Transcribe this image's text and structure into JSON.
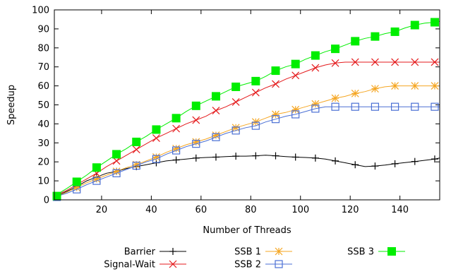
{
  "chart_data": {
    "type": "line",
    "xlabel": "Number of Threads",
    "ylabel": "Speedup",
    "xlim": [
      1,
      156
    ],
    "ylim": [
      0,
      100
    ],
    "xticks": [
      20,
      40,
      60,
      80,
      100,
      120,
      140
    ],
    "yticks": [
      0,
      10,
      20,
      30,
      40,
      50,
      60,
      70,
      80,
      90,
      100
    ],
    "grid": false,
    "legend": "bottom",
    "series": [
      {
        "name": "Barrier",
        "color": "#000000",
        "marker": "plus",
        "line_x": [
          1,
          6,
          10,
          14,
          18,
          22,
          26,
          30,
          34,
          38,
          42,
          46,
          50,
          54,
          58,
          62,
          66,
          70,
          74,
          78,
          82,
          86,
          90,
          94,
          98,
          102,
          106,
          110,
          114,
          118,
          122,
          126,
          130,
          134,
          138,
          142,
          146,
          150,
          154,
          156
        ],
        "line_y": [
          1.5,
          4.5,
          7,
          10,
          12,
          14,
          15,
          16.5,
          17.5,
          18.5,
          19.5,
          20.5,
          21,
          21.5,
          22,
          22.3,
          22.5,
          22.8,
          23,
          23,
          23.2,
          23.5,
          23.2,
          22.8,
          22.5,
          22.3,
          22,
          21.5,
          20.5,
          19.5,
          18.5,
          17.5,
          17.8,
          18.3,
          19,
          19.6,
          20.2,
          20.8,
          21.5,
          22
        ],
        "marker_x": [
          2,
          10,
          18,
          26,
          34,
          42,
          50,
          58,
          66,
          74,
          82,
          90,
          98,
          106,
          114,
          122,
          130,
          138,
          146,
          154
        ],
        "marker_y": [
          1.5,
          7,
          12,
          15,
          17.5,
          19.5,
          21,
          22,
          22.5,
          23,
          23.2,
          23.2,
          22.5,
          22,
          20.5,
          18.5,
          17.8,
          19,
          20.2,
          21.5
        ]
      },
      {
        "name": "Signal-Wait",
        "color": "#e41a1c",
        "marker": "cross",
        "line_x": [
          1,
          6,
          10,
          14,
          18,
          22,
          26,
          30,
          34,
          38,
          42,
          46,
          50,
          54,
          58,
          62,
          66,
          70,
          74,
          78,
          82,
          86,
          90,
          94,
          98,
          102,
          106,
          110,
          114,
          118,
          122,
          126,
          130,
          134,
          138,
          142,
          146,
          150,
          154,
          156
        ],
        "line_y": [
          2,
          5,
          8,
          11,
          14,
          17.5,
          20.5,
          23.5,
          26.5,
          29.5,
          32.5,
          35,
          37.5,
          40,
          42,
          44,
          47,
          49,
          51.5,
          54,
          56.5,
          59,
          61,
          63.5,
          65.5,
          67.5,
          69.5,
          71,
          72,
          72.5,
          72.5,
          72.5,
          72.5,
          72.5,
          72.5,
          72.5,
          72.5,
          72.5,
          72.5,
          72.5
        ],
        "marker_x": [
          2,
          10,
          18,
          26,
          34,
          42,
          50,
          58,
          66,
          74,
          82,
          90,
          98,
          106,
          114,
          122,
          130,
          138,
          146,
          154
        ],
        "marker_y": [
          2,
          8,
          14,
          20.5,
          26.5,
          32.5,
          37.5,
          42,
          47,
          51.5,
          56.5,
          61,
          65.5,
          69.5,
          72,
          72.5,
          72.5,
          72.5,
          72.5,
          72.5
        ]
      },
      {
        "name": "SSB 1",
        "color": "#f5a623",
        "marker": "star",
        "line_x": [
          1,
          6,
          10,
          14,
          18,
          22,
          26,
          30,
          34,
          38,
          42,
          46,
          50,
          54,
          58,
          62,
          66,
          70,
          74,
          78,
          82,
          86,
          90,
          94,
          98,
          102,
          106,
          110,
          114,
          118,
          122,
          126,
          130,
          134,
          138,
          142,
          146,
          150,
          154,
          156
        ],
        "line_y": [
          1.5,
          4,
          6.5,
          9,
          11,
          13,
          15,
          17,
          18.5,
          20.5,
          22.5,
          25,
          27,
          29,
          30.5,
          32,
          34,
          36,
          38,
          39.5,
          41,
          43,
          45,
          46,
          47.5,
          49,
          50.5,
          52,
          53.5,
          54.5,
          56,
          57,
          58.5,
          59.5,
          60,
          60,
          60,
          60,
          60,
          60
        ],
        "marker_x": [
          2,
          10,
          18,
          26,
          34,
          42,
          50,
          58,
          66,
          74,
          82,
          90,
          98,
          106,
          114,
          122,
          130,
          138,
          146,
          154
        ],
        "marker_y": [
          1.5,
          6.5,
          11,
          15,
          18.5,
          22.5,
          27,
          30.5,
          34,
          38,
          41,
          45,
          47.5,
          50.5,
          53.5,
          56,
          58.5,
          60,
          60,
          60
        ]
      },
      {
        "name": "SSB 2",
        "color": "#4a6fd4",
        "marker": "square-open",
        "line_x": [
          1,
          6,
          10,
          14,
          18,
          22,
          26,
          30,
          34,
          38,
          42,
          46,
          50,
          54,
          58,
          62,
          66,
          70,
          74,
          78,
          82,
          86,
          90,
          94,
          98,
          102,
          106,
          110,
          114,
          118,
          122,
          126,
          130,
          134,
          138,
          142,
          146,
          150,
          154,
          156
        ],
        "line_y": [
          1.5,
          3.5,
          5.5,
          8,
          10,
          12,
          14,
          16,
          18,
          20,
          21.5,
          24,
          26,
          28,
          29.5,
          31,
          33,
          35,
          36.5,
          38,
          39,
          41,
          42.5,
          44,
          45,
          46.5,
          48,
          49,
          49,
          49,
          49,
          49,
          49,
          49,
          49,
          49,
          49,
          49,
          49,
          49
        ],
        "marker_x": [
          2,
          10,
          18,
          26,
          34,
          42,
          50,
          58,
          66,
          74,
          82,
          90,
          98,
          106,
          114,
          122,
          130,
          138,
          146,
          154
        ],
        "marker_y": [
          1.5,
          5.5,
          10,
          14,
          18,
          21.5,
          26,
          29.5,
          33,
          36.5,
          39,
          42.5,
          45,
          48,
          49,
          49,
          49,
          49,
          49,
          49
        ]
      },
      {
        "name": "SSB 3",
        "color": "#00ee00",
        "marker": "square-filled",
        "line_x": [
          1,
          6,
          10,
          14,
          18,
          22,
          26,
          30,
          34,
          38,
          42,
          46,
          50,
          54,
          58,
          62,
          66,
          70,
          74,
          78,
          82,
          86,
          90,
          94,
          98,
          102,
          106,
          110,
          114,
          118,
          122,
          126,
          130,
          134,
          138,
          142,
          146,
          150,
          154,
          156
        ],
        "line_y": [
          2,
          6,
          9.5,
          13,
          17,
          20.5,
          24,
          27,
          30.5,
          33.5,
          37,
          40,
          43,
          46.5,
          49.5,
          52,
          54.5,
          57,
          59.5,
          61,
          62.5,
          65,
          68,
          70,
          71.5,
          74,
          76,
          78,
          79.5,
          81.5,
          83.5,
          85,
          86,
          87.5,
          88.5,
          90.5,
          92,
          93,
          93.5,
          94
        ],
        "marker_x": [
          2,
          10,
          18,
          26,
          34,
          42,
          50,
          58,
          66,
          74,
          82,
          90,
          98,
          106,
          114,
          122,
          130,
          138,
          146,
          154
        ],
        "marker_y": [
          2,
          9.5,
          17,
          24,
          30.5,
          37,
          43,
          49.5,
          54.5,
          59.5,
          62.5,
          68,
          71.5,
          76,
          79.5,
          83.5,
          86,
          88.5,
          92,
          93.5
        ]
      }
    ]
  }
}
